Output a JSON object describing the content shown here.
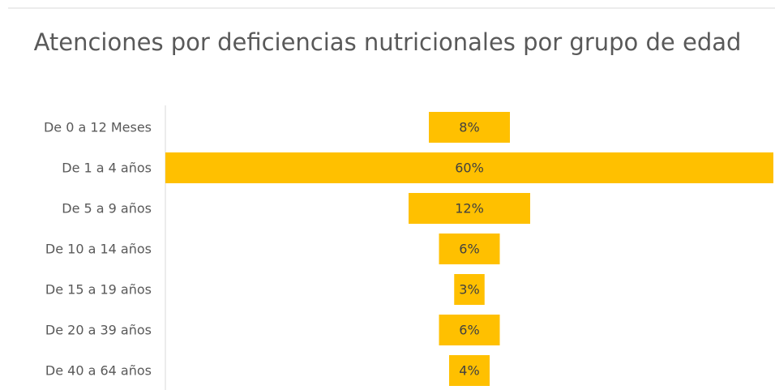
{
  "chart_data": {
    "type": "funnel",
    "title": "Atenciones por deficiencias nutricionales por grupo de edad",
    "categories": [
      "De 0 a 12 Meses",
      "De 1 a 4 años",
      "De 5 a 9 años",
      "De 10 a 14 años",
      "De 15 a 19 años",
      "De 20 a 39 años",
      "De 40 a 64 años"
    ],
    "values": [
      8,
      60,
      12,
      6,
      3,
      6,
      4
    ],
    "value_labels": [
      "8%",
      "60%",
      "12%",
      "6%",
      "3%",
      "6%",
      "4%"
    ],
    "color": "#ffc000"
  }
}
